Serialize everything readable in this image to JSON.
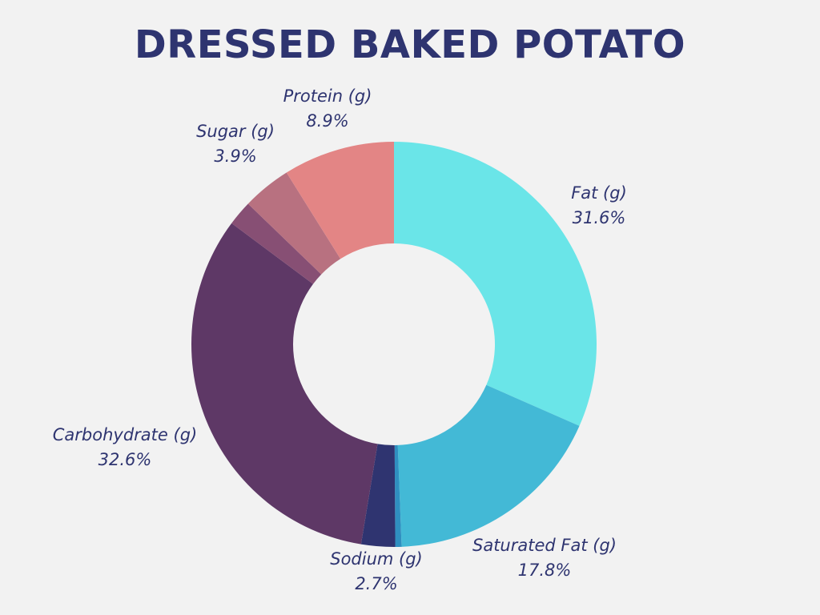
{
  "chart_data": {
    "type": "pie",
    "style": "donut",
    "title": "DRESSED BAKED POTATO",
    "series": [
      {
        "name": "Fat (g)",
        "value": 31.6,
        "label": "31.6%",
        "color": "#6ae5e8",
        "show_label": true
      },
      {
        "name": "Saturated Fat (g)",
        "value": 17.8,
        "label": "17.8%",
        "color": "#43b9d6",
        "show_label": true
      },
      {
        "name": "",
        "value": 0.5,
        "label": "",
        "color": "#2f8fc0",
        "show_label": false
      },
      {
        "name": "Sodium (g)",
        "value": 2.7,
        "label": "2.7%",
        "color": "#2f3470",
        "show_label": true
      },
      {
        "name": "Carbohydrate (g)",
        "value": 32.6,
        "label": "32.6%",
        "color": "#5e3866",
        "show_label": true
      },
      {
        "name": "",
        "value": 2.0,
        "label": "",
        "color": "#874f74",
        "show_label": false
      },
      {
        "name": "Sugar (g)",
        "value": 3.9,
        "label": "3.9%",
        "color": "#b87180",
        "show_label": true
      },
      {
        "name": "Protein (g)",
        "value": 8.9,
        "label": "8.9%",
        "color": "#e38585",
        "show_label": true
      }
    ],
    "legend": "none"
  },
  "colors": {
    "background": "#f2f2f2",
    "text": "#2e3470"
  }
}
